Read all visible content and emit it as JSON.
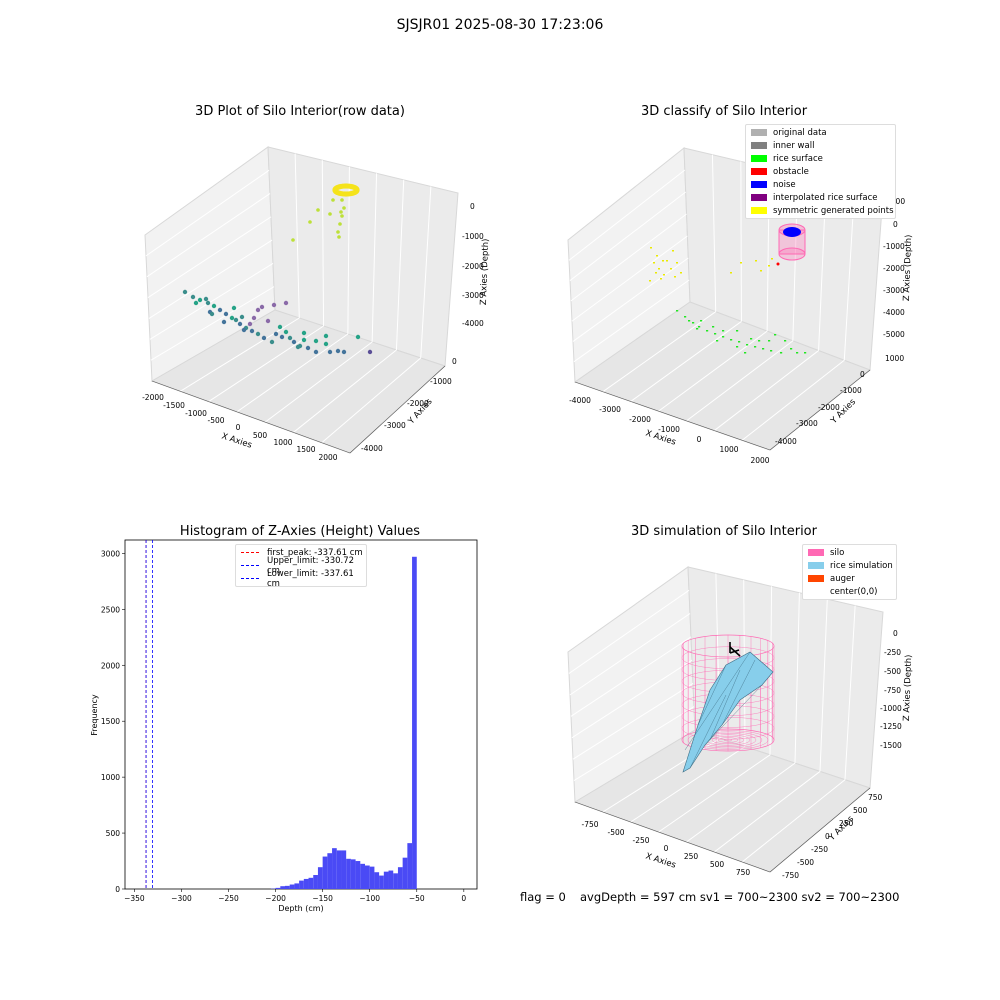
{
  "suptitle": "SJSJR01 2025-08-30 17:23:06",
  "panel_tl": {
    "title": "3D Plot of Silo Interior(row data)",
    "xlabel": "X Axies",
    "ylabel": "Y Axies",
    "zlabel": "Z Axies (Depth)",
    "xticks": [
      "-2000",
      "-1500",
      "-1000",
      "-500",
      "0",
      "500",
      "1000",
      "1500",
      "2000"
    ],
    "yticks": [
      "0",
      "-1000",
      "-2000",
      "-3000",
      "-4000"
    ],
    "zticks": [
      "0",
      "-1000",
      "-2000",
      "-3000",
      "-4000"
    ]
  },
  "panel_tr": {
    "title": "3D classify of Silo Interior",
    "xlabel": "X Axies",
    "ylabel": "Y Axies",
    "zlabel": "Z Axies (Depth)",
    "xticks": [
      "-4000",
      "-3000",
      "-2000",
      "-1000",
      "0",
      "1000",
      "2000"
    ],
    "yticks": [
      "1000",
      "0",
      "-1000",
      "-2000",
      "-3000",
      "-4000"
    ],
    "zticks": [
      "1000",
      "0",
      "-1000",
      "-2000",
      "-3000",
      "-4000",
      "-5000"
    ],
    "legend": [
      {
        "label": "original data",
        "color": "#b0b0b0"
      },
      {
        "label": "inner wall",
        "color": "#808080"
      },
      {
        "label": "rice surface",
        "color": "#00ff00"
      },
      {
        "label": "obstacle",
        "color": "#ff0000"
      },
      {
        "label": "noise",
        "color": "#0000ff"
      },
      {
        "label": "interpolated rice surface",
        "color": "#800080"
      },
      {
        "label": "symmetric generated points",
        "color": "#ffff00"
      }
    ]
  },
  "panel_br": {
    "title": "3D simulation of Silo Interior",
    "xlabel": "X Axies",
    "ylabel": "Y Axies",
    "zlabel": "Z Axies (Depth)",
    "xticks": [
      "-750",
      "-500",
      "-250",
      "0",
      "250",
      "500",
      "750"
    ],
    "yticks": [
      "750",
      "500",
      "250",
      "0",
      "-250",
      "-500",
      "-750"
    ],
    "zticks": [
      "0",
      "-250",
      "-500",
      "-750",
      "-1000",
      "-1250",
      "-1500"
    ],
    "legend": [
      {
        "label": "silo",
        "color": "#ff69b4"
      },
      {
        "label": "rice simulation",
        "color": "#87ceeb"
      },
      {
        "label": "auger",
        "color": "#ff4500"
      },
      {
        "label": "center(0,0)",
        "color": "#ffffff"
      }
    ]
  },
  "footer": {
    "flag": "flag = 0",
    "stats": "avgDepth = 597 cm  sv1 = 700~2300  sv2 = 700~2300"
  },
  "chart_data": [
    {
      "type": "scatter",
      "title": "3D Plot of Silo Interior(row data)",
      "xlabel": "X Axies",
      "ylabel": "Y Axies",
      "zlabel": "Z Axies (Depth)",
      "xlim": [
        -2000,
        2000
      ],
      "ylim": [
        -4000,
        0
      ],
      "zlim": [
        -4500,
        0
      ]
    },
    {
      "type": "scatter",
      "title": "3D classify of Silo Interior",
      "xlabel": "X Axies",
      "ylabel": "Y Axies",
      "zlabel": "Z Axies (Depth)",
      "xlim": [
        -4000,
        2000
      ],
      "ylim": [
        -4000,
        1000
      ],
      "zlim": [
        -5000,
        1000
      ],
      "series": [
        {
          "name": "original data"
        },
        {
          "name": "inner wall"
        },
        {
          "name": "rice surface"
        },
        {
          "name": "obstacle"
        },
        {
          "name": "noise"
        },
        {
          "name": "interpolated rice surface"
        },
        {
          "name": "symmetric generated points"
        }
      ]
    },
    {
      "type": "bar",
      "title": "Histogram of Z-Axies (Height) Values",
      "xlabel": "Depth (cm)",
      "ylabel": "Frequency",
      "xlim": [
        -360,
        14
      ],
      "ylim": [
        0,
        3120
      ],
      "xticks": [
        -350,
        -300,
        -250,
        -200,
        -150,
        -100,
        -50,
        0
      ],
      "yticks": [
        0,
        500,
        1000,
        1500,
        2000,
        2500,
        3000
      ],
      "bin_width": 5,
      "bins": [
        {
          "x": -205,
          "value": 3
        },
        {
          "x": -200,
          "value": 10
        },
        {
          "x": -195,
          "value": 25
        },
        {
          "x": -190,
          "value": 28
        },
        {
          "x": -185,
          "value": 40
        },
        {
          "x": -180,
          "value": 50
        },
        {
          "x": -175,
          "value": 75
        },
        {
          "x": -170,
          "value": 90
        },
        {
          "x": -165,
          "value": 100
        },
        {
          "x": -160,
          "value": 125
        },
        {
          "x": -155,
          "value": 195
        },
        {
          "x": -150,
          "value": 290
        },
        {
          "x": -145,
          "value": 320
        },
        {
          "x": -140,
          "value": 365
        },
        {
          "x": -135,
          "value": 345
        },
        {
          "x": -130,
          "value": 345
        },
        {
          "x": -125,
          "value": 270
        },
        {
          "x": -120,
          "value": 265
        },
        {
          "x": -115,
          "value": 250
        },
        {
          "x": -110,
          "value": 225
        },
        {
          "x": -105,
          "value": 210
        },
        {
          "x": -100,
          "value": 200
        },
        {
          "x": -95,
          "value": 150
        },
        {
          "x": -90,
          "value": 120
        },
        {
          "x": -85,
          "value": 155
        },
        {
          "x": -80,
          "value": 165
        },
        {
          "x": -75,
          "value": 140
        },
        {
          "x": -70,
          "value": 195
        },
        {
          "x": -65,
          "value": 280
        },
        {
          "x": -60,
          "value": 410
        },
        {
          "x": -55,
          "value": 2970
        }
      ],
      "vlines": [
        {
          "label": "first_peak: -337.61 cm",
          "x": -337.61,
          "color": "#ff0000"
        },
        {
          "label": "Upper_limit: -330.72 cm",
          "x": -330.72,
          "color": "#0000ff"
        },
        {
          "label": "Lower_limit: -337.61 cm",
          "x": -337.61,
          "color": "#0000ff"
        }
      ],
      "bar_color": "#4a4af5"
    },
    {
      "type": "surface",
      "title": "3D simulation of Silo Interior",
      "xlabel": "X Axies",
      "ylabel": "Y Axies",
      "zlabel": "Z Axies (Depth)",
      "xlim": [
        -900,
        900
      ],
      "ylim": [
        -900,
        900
      ],
      "zlim": [
        -1600,
        100
      ],
      "series": [
        {
          "name": "silo"
        },
        {
          "name": "rice simulation"
        },
        {
          "name": "auger"
        },
        {
          "name": "center(0,0)"
        }
      ]
    }
  ]
}
